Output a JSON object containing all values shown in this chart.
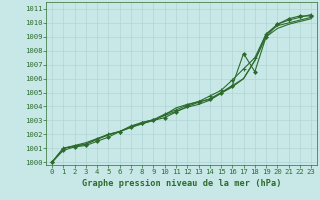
{
  "title": "Graphe pression niveau de la mer (hPa)",
  "bg_color": "#c8e8e8",
  "grid_color": "#b0d4d4",
  "line_color": "#2d6b2d",
  "marker_color": "#2d6b2d",
  "xlim": [
    -0.5,
    23.5
  ],
  "ylim": [
    999.8,
    1011.5
  ],
  "xticks": [
    0,
    1,
    2,
    3,
    4,
    5,
    6,
    7,
    8,
    9,
    10,
    11,
    12,
    13,
    14,
    15,
    16,
    17,
    18,
    19,
    20,
    21,
    22,
    23
  ],
  "yticks": [
    1000,
    1001,
    1002,
    1003,
    1004,
    1005,
    1006,
    1007,
    1008,
    1009,
    1010,
    1011
  ],
  "series": [
    {
      "data": [
        1000.0,
        1000.85,
        1001.1,
        1001.2,
        1001.5,
        1001.8,
        1002.2,
        1002.5,
        1002.8,
        1003.0,
        1003.2,
        1003.6,
        1004.0,
        1004.3,
        1004.55,
        1005.0,
        1005.5,
        1007.8,
        1006.5,
        1009.0,
        1009.9,
        1010.3,
        1010.5,
        1010.5
      ],
      "marker": "D",
      "markersize": 2.0,
      "linewidth": 0.8
    },
    {
      "data": [
        1000.0,
        1001.0,
        1001.2,
        1001.4,
        1001.7,
        1002.0,
        1002.2,
        1002.5,
        1002.75,
        1003.0,
        1003.4,
        1003.9,
        1004.15,
        1004.35,
        1004.5,
        1004.95,
        1005.4,
        1006.0,
        1007.3,
        1009.2,
        1009.8,
        1010.0,
        1010.2,
        1010.4
      ],
      "marker": "none",
      "markersize": 0,
      "linewidth": 0.8
    },
    {
      "data": [
        1000.0,
        1001.0,
        1001.15,
        1001.3,
        1001.65,
        1001.95,
        1002.2,
        1002.55,
        1002.85,
        1003.05,
        1003.35,
        1003.65,
        1003.95,
        1004.15,
        1004.45,
        1004.95,
        1005.5,
        1006.0,
        1007.3,
        1009.0,
        1009.6,
        1009.9,
        1010.1,
        1010.3
      ],
      "marker": "none",
      "markersize": 0,
      "linewidth": 0.8
    },
    {
      "data": [
        1000.0,
        1001.0,
        1001.15,
        1001.3,
        1001.65,
        1002.0,
        1002.2,
        1002.6,
        1002.85,
        1003.05,
        1003.45,
        1003.75,
        1004.1,
        1004.35,
        1004.75,
        1005.15,
        1005.9,
        1006.7,
        1007.5,
        1009.2,
        1009.9,
        1010.2,
        1010.4,
        1010.6
      ],
      "marker": "+",
      "markersize": 3.5,
      "linewidth": 0.8
    }
  ],
  "font_color": "#2d6b2d",
  "tick_fontsize": 5.2,
  "title_fontsize": 6.2
}
